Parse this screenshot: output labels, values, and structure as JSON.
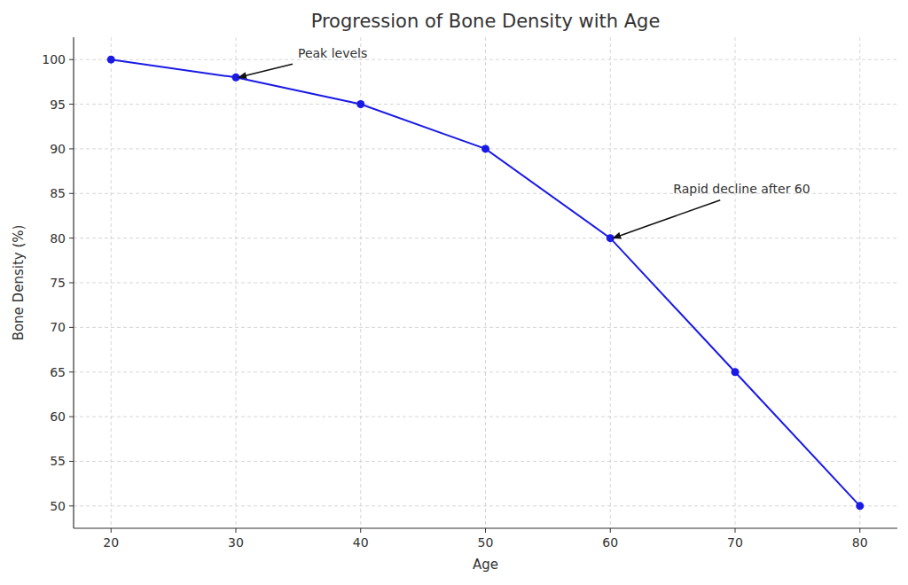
{
  "chart_data": {
    "type": "line",
    "title": "Progression of Bone Density with Age",
    "x_label": "Age",
    "y_label": "Bone Density (%)",
    "x": [
      20,
      30,
      40,
      50,
      60,
      70,
      80
    ],
    "values": [
      100,
      98,
      95,
      90,
      80,
      65,
      50
    ],
    "color": "#1a1ae6",
    "marker": "circle",
    "line_style": "solid",
    "xlim": [
      17,
      83
    ],
    "xticks": [
      20,
      30,
      40,
      50,
      60,
      70,
      80
    ],
    "ylim": [
      47.5,
      102.5
    ],
    "yticks": [
      50,
      55,
      60,
      65,
      70,
      75,
      80,
      85,
      90,
      95,
      100
    ],
    "grid": true,
    "annotations": [
      {
        "text": "Peak levels",
        "x": 30,
        "y": 98
      },
      {
        "text": "Rapid decline after 60",
        "x": 60,
        "y": 80
      }
    ]
  }
}
